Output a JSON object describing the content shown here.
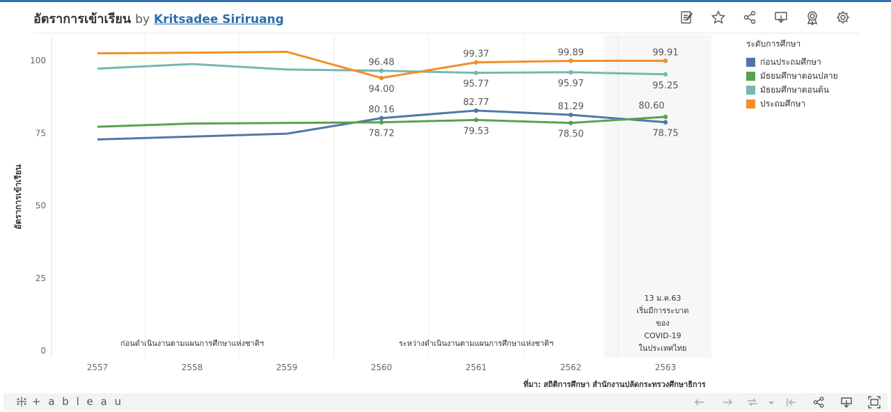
{
  "header": {
    "title": "อัตราการเข้าเรียน",
    "by": "by",
    "author": "Kritsadee Siriruang"
  },
  "toolbar_icons": [
    "edit-icon",
    "star-icon",
    "share-icon",
    "download-icon",
    "award-icon",
    "gear-icon"
  ],
  "legend": {
    "title": "ระดับการศึกษา",
    "items": [
      {
        "label": "ก่อนประถมศึกษา",
        "color": "#4e79a7"
      },
      {
        "label": "มัธยมศึกษาตอนปลาย",
        "color": "#59a14f"
      },
      {
        "label": "มัธยมศึกษาตอนต้น",
        "color": "#76b7b2"
      },
      {
        "label": "ประถมศึกษา",
        "color": "#f28e2b"
      }
    ]
  },
  "chart_data": {
    "type": "line",
    "x": [
      "2557",
      "2558",
      "2559",
      "2560",
      "2561",
      "2562",
      "2563"
    ],
    "ylabel": "อัตราการเข้าเรียน",
    "ylim": [
      0,
      110
    ],
    "yticks": [
      0,
      25,
      50,
      75,
      100
    ],
    "series": [
      {
        "name": "ก่อนประถมศึกษา",
        "color": "#4e79a7",
        "values": [
          72.8,
          73.8,
          74.8,
          80.16,
          82.77,
          81.29,
          78.75
        ],
        "labels": [
          "",
          "",
          "",
          "80.16",
          "82.77",
          "81.29",
          "78.75"
        ],
        "label_pos": [
          "",
          "",
          "",
          "above",
          "above",
          "above",
          "below"
        ]
      },
      {
        "name": "มัธยมศึกษาตอนปลาย",
        "color": "#59a14f",
        "values": [
          77.2,
          78.3,
          78.5,
          78.72,
          79.53,
          78.5,
          80.6
        ],
        "labels": [
          "",
          "",
          "",
          "78.72",
          "79.53",
          "78.50",
          "80.60"
        ],
        "label_pos": [
          "",
          "",
          "",
          "below",
          "below",
          "below",
          "above-left"
        ]
      },
      {
        "name": "มัธยมศึกษาตอนต้น",
        "color": "#76b7b2",
        "values": [
          97.2,
          98.8,
          96.9,
          96.48,
          95.77,
          95.97,
          95.25
        ],
        "labels": [
          "",
          "",
          "",
          "96.48",
          "95.77",
          "95.97",
          "95.25"
        ],
        "label_pos": [
          "",
          "",
          "",
          "above",
          "below",
          "below",
          "below"
        ]
      },
      {
        "name": "ประถมศึกษา",
        "color": "#f28e2b",
        "values": [
          102.5,
          102.7,
          103.0,
          94.0,
          99.37,
          99.89,
          99.91
        ],
        "labels": [
          "",
          "",
          "",
          "94.00",
          "99.37",
          "99.89",
          "99.91"
        ],
        "label_pos": [
          "",
          "",
          "",
          "below",
          "above",
          "above",
          "above"
        ]
      }
    ],
    "period_labels": [
      {
        "text": "ก่อนดำเนินงานตามแผนการศึกษาแห่งชาติฯ",
        "x": "2558"
      },
      {
        "text": "ระหว่างดำเนินงานตามแผนการศึกษาแห่งชาติฯ",
        "x": "2561"
      }
    ],
    "annotation_lines": [
      "13 ม.ค.63",
      "เริ่มมีการระบาด",
      "ของ",
      "COVID-19",
      "ในประเทศไทย"
    ],
    "grid": false
  },
  "source_note": "ที่มา: สถิติการศึกษา สำนักงานปลัดกระทรวงศึกษาธิการ",
  "footer": {
    "logo_text": "+ a b l e a u"
  }
}
